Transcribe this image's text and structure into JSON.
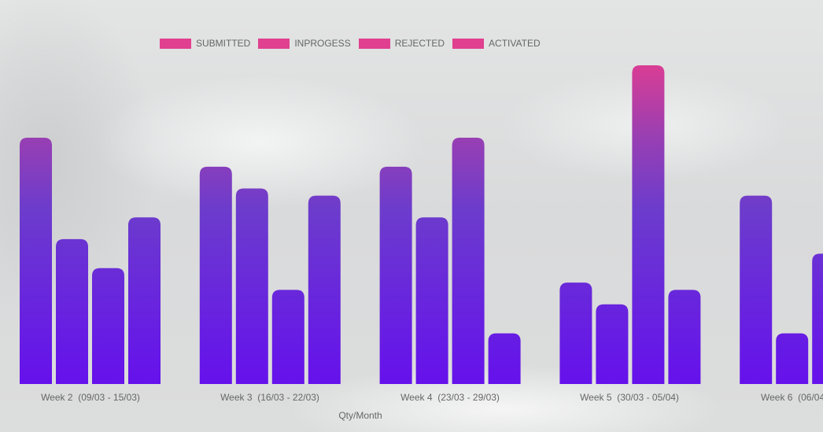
{
  "chart_data": {
    "type": "bar",
    "title": "",
    "xlabel": "Qty/Month",
    "ylabel": "",
    "ylim": [
      0,
      44
    ],
    "grid": false,
    "legend_position": "top",
    "categories": [
      "Week 2  (09/03 - 15/03)",
      "Week 3  (16/03 - 22/03)",
      "Week 4  (23/03 - 29/03)",
      "Week 5  (30/03 - 05/04)",
      "Week 6  (06/04"
    ],
    "series": [
      {
        "name": "SUBMITTED",
        "values": [
          34,
          30,
          30,
          14,
          26
        ]
      },
      {
        "name": "INPROGESS",
        "values": [
          20,
          27,
          23,
          11,
          7
        ]
      },
      {
        "name": "REJECTED",
        "values": [
          16,
          13,
          34,
          44,
          18
        ]
      },
      {
        "name": "ACTIVATED",
        "values": [
          23,
          26,
          7,
          13,
          null
        ]
      }
    ],
    "colors": {
      "legend": "#e0408f",
      "bar_top": "#d93d94",
      "bar_mid": "#6c3ccc",
      "bar_bottom": "#6511ec",
      "text": "#666666"
    }
  }
}
